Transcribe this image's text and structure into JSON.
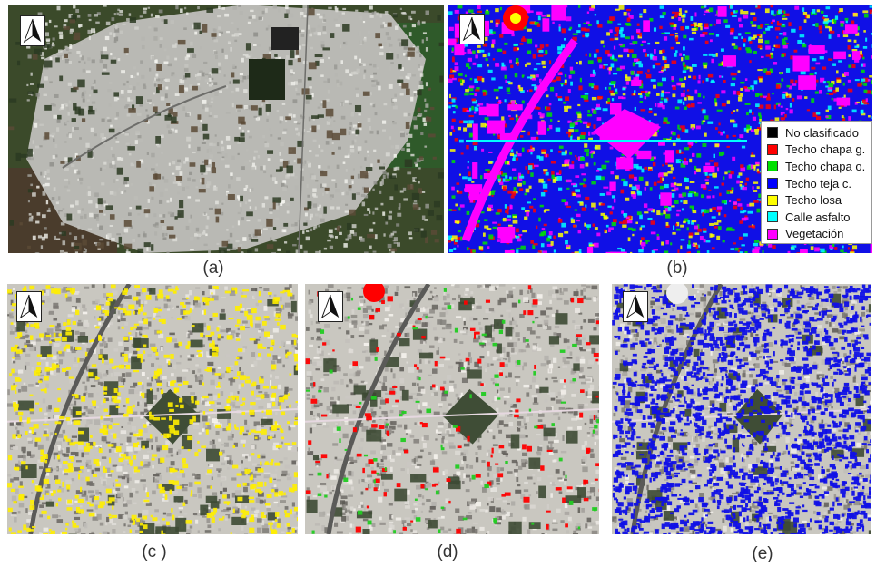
{
  "panels": [
    {
      "id": "a",
      "caption": "(a)",
      "kind": "satellite-rgb"
    },
    {
      "id": "b",
      "caption": "(b)",
      "kind": "classification-map"
    },
    {
      "id": "c",
      "caption": "(c )",
      "kind": "overlay-techo-losa"
    },
    {
      "id": "d",
      "caption": "(d)",
      "kind": "overlay-techo-chapa"
    },
    {
      "id": "e",
      "caption": "(e)",
      "kind": "overlay-techo-teja"
    }
  ],
  "legend": {
    "items": [
      {
        "label": "No clasificado",
        "color": "#000000"
      },
      {
        "label": "Techo chapa g.",
        "color": "#ff0000"
      },
      {
        "label": "Techo chapa o.",
        "color": "#00e000"
      },
      {
        "label": "Techo teja c.",
        "color": "#0000ff"
      },
      {
        "label": "Techo losa",
        "color": "#ffff00"
      },
      {
        "label": "Calle asfalto",
        "color": "#00ffff"
      },
      {
        "label": "Vegetación",
        "color": "#ff00ff"
      }
    ]
  },
  "icons": {
    "north_arrow": "north-arrow-icon"
  },
  "colors": {
    "urban_gray": "#b9b9b4",
    "vegetation_dark": "#3b4a2a",
    "fields_green": "#2f5a2a",
    "magenta": "#ff00ff",
    "blue": "#1010e6",
    "yellow": "#ffee00",
    "red": "#ff0000",
    "green": "#22cc22"
  }
}
